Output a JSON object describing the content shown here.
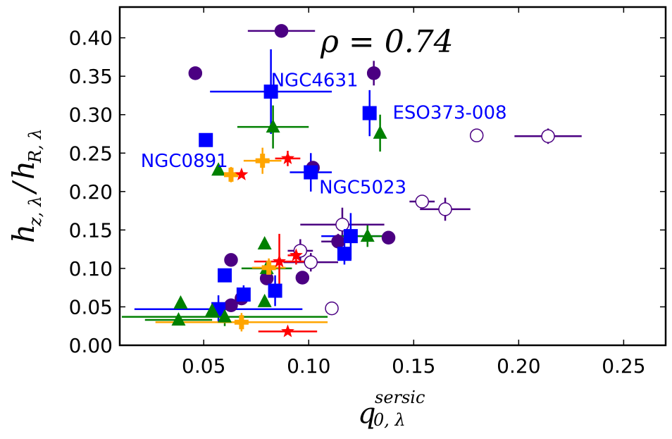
{
  "chart_data": {
    "type": "scatter",
    "title": "",
    "xlabel": "q",
    "xlabel_subscript": "0, λ",
    "xlabel_superscript": "sersic",
    "ylabel": "h_{z,λ}/h_{R,λ}",
    "ylabel_num_main": "h",
    "ylabel_num_sub": "z, λ",
    "ylabel_den_main": "h",
    "ylabel_den_sub": "R, λ",
    "xlim": [
      0.01,
      0.27
    ],
    "ylim": [
      0.0,
      0.44
    ],
    "xticks": [
      0.05,
      0.1,
      0.15,
      0.2,
      0.25
    ],
    "xtick_labels": [
      "0.05",
      "0.10",
      "0.15",
      "0.20",
      "0.25"
    ],
    "yticks": [
      0.0,
      0.05,
      0.1,
      0.15,
      0.2,
      0.25,
      0.3,
      0.35,
      0.4
    ],
    "ytick_labels": [
      "0.00",
      "0.05",
      "0.10",
      "0.15",
      "0.20",
      "0.25",
      "0.30",
      "0.35",
      "0.40"
    ],
    "correlation_text": "ρ = 0.74",
    "colors": {
      "purple": "#4b0082",
      "blue": "#0000ff",
      "green": "#008000",
      "orange": "#ffa500",
      "red": "#ff0000"
    },
    "annotations": [
      {
        "text": "NGC4631",
        "x": 0.082,
        "y": 0.345
      },
      {
        "text": "ESO373-008",
        "x": 0.14,
        "y": 0.303
      },
      {
        "text": "NGC0891",
        "x": 0.02,
        "y": 0.24
      },
      {
        "text": "NGC5023",
        "x": 0.105,
        "y": 0.206
      }
    ],
    "series": [
      {
        "name": "purple-filled",
        "marker": "circle",
        "color": "#4b0082",
        "filled": true,
        "points": [
          {
            "x": 0.087,
            "y": 0.409,
            "xerr": 0.016,
            "yerr": 0
          },
          {
            "x": 0.046,
            "y": 0.354,
            "xerr": 0,
            "yerr": 0
          },
          {
            "x": 0.131,
            "y": 0.354,
            "xerr": 0,
            "yerr": 0.016
          },
          {
            "x": 0.102,
            "y": 0.231,
            "xerr": 0,
            "yerr": 0
          },
          {
            "x": 0.063,
            "y": 0.111,
            "xerr": 0,
            "yerr": 0
          },
          {
            "x": 0.08,
            "y": 0.087,
            "xerr": 0,
            "yerr": 0
          },
          {
            "x": 0.097,
            "y": 0.088,
            "xerr": 0,
            "yerr": 0
          },
          {
            "x": 0.114,
            "y": 0.135,
            "xerr": 0.008,
            "yerr": 0.01
          },
          {
            "x": 0.138,
            "y": 0.14,
            "xerr": 0,
            "yerr": 0
          },
          {
            "x": 0.068,
            "y": 0.061,
            "xerr": 0,
            "yerr": 0
          },
          {
            "x": 0.063,
            "y": 0.052,
            "xerr": 0,
            "yerr": 0
          }
        ]
      },
      {
        "name": "purple-open",
        "marker": "circle",
        "color": "#4b0082",
        "filled": false,
        "points": [
          {
            "x": 0.18,
            "y": 0.273,
            "xerr": 0,
            "yerr": 0
          },
          {
            "x": 0.214,
            "y": 0.272,
            "xerr": 0.016,
            "yerr": 0.01
          },
          {
            "x": 0.154,
            "y": 0.187,
            "xerr": 0.006,
            "yerr": 0
          },
          {
            "x": 0.165,
            "y": 0.177,
            "xerr": 0.012,
            "yerr": 0.015
          },
          {
            "x": 0.116,
            "y": 0.157,
            "xerr": 0.02,
            "yerr": 0.022
          },
          {
            "x": 0.096,
            "y": 0.123,
            "xerr": 0.006,
            "yerr": 0.015
          },
          {
            "x": 0.101,
            "y": 0.108,
            "xerr": 0.013,
            "yerr": 0.012
          },
          {
            "x": 0.111,
            "y": 0.048,
            "xerr": 0,
            "yerr": 0
          }
        ]
      },
      {
        "name": "blue",
        "marker": "square",
        "color": "#0000ff",
        "filled": true,
        "points": [
          {
            "x": 0.082,
            "y": 0.33,
            "xerr": 0.029,
            "yerr": 0.055
          },
          {
            "x": 0.129,
            "y": 0.302,
            "xerr": 0,
            "yerr": 0.03
          },
          {
            "x": 0.051,
            "y": 0.267,
            "xerr": 0,
            "yerr": 0
          },
          {
            "x": 0.101,
            "y": 0.225,
            "xerr": 0.01,
            "yerr": 0.025
          },
          {
            "x": 0.12,
            "y": 0.142,
            "xerr": 0.014,
            "yerr": 0.03
          },
          {
            "x": 0.117,
            "y": 0.119,
            "xerr": 0,
            "yerr": 0.014
          },
          {
            "x": 0.06,
            "y": 0.091,
            "xerr": 0,
            "yerr": 0
          },
          {
            "x": 0.084,
            "y": 0.071,
            "xerr": 0,
            "yerr": 0.02
          },
          {
            "x": 0.069,
            "y": 0.066,
            "xerr": 0,
            "yerr": 0.012
          },
          {
            "x": 0.057,
            "y": 0.047,
            "xerr": 0.04,
            "yerr": 0.018
          }
        ]
      },
      {
        "name": "green",
        "marker": "triangle",
        "color": "#008000",
        "filled": true,
        "points": [
          {
            "x": 0.083,
            "y": 0.284,
            "xerr": 0.017,
            "yerr": 0.028
          },
          {
            "x": 0.134,
            "y": 0.276,
            "xerr": 0,
            "yerr": 0.024
          },
          {
            "x": 0.057,
            "y": 0.228,
            "xerr": 0,
            "yerr": 0
          },
          {
            "x": 0.079,
            "y": 0.132,
            "xerr": 0,
            "yerr": 0
          },
          {
            "x": 0.128,
            "y": 0.142,
            "xerr": 0.013,
            "yerr": 0.014
          },
          {
            "x": 0.08,
            "y": 0.1,
            "xerr": 0.012,
            "yerr": 0.01
          },
          {
            "x": 0.039,
            "y": 0.055,
            "xerr": 0,
            "yerr": 0
          },
          {
            "x": 0.079,
            "y": 0.057,
            "xerr": 0,
            "yerr": 0
          },
          {
            "x": 0.054,
            "y": 0.045,
            "xerr": 0,
            "yerr": 0
          },
          {
            "x": 0.06,
            "y": 0.037,
            "xerr": 0.049,
            "yerr": 0.012
          },
          {
            "x": 0.038,
            "y": 0.033,
            "xerr": 0.016,
            "yerr": 0
          }
        ]
      },
      {
        "name": "orange",
        "marker": "plus",
        "color": "#ffa500",
        "filled": true,
        "points": [
          {
            "x": 0.078,
            "y": 0.24,
            "xerr": 0.009,
            "yerr": 0.017
          },
          {
            "x": 0.063,
            "y": 0.222,
            "xerr": 0,
            "yerr": 0.01
          },
          {
            "x": 0.081,
            "y": 0.101,
            "xerr": 0.008,
            "yerr": 0.012
          },
          {
            "x": 0.068,
            "y": 0.03,
            "xerr": 0.041,
            "yerr": 0.012
          }
        ]
      },
      {
        "name": "red",
        "marker": "star",
        "color": "#ff0000",
        "filled": true,
        "points": [
          {
            "x": 0.09,
            "y": 0.243,
            "xerr": 0.006,
            "yerr": 0.01
          },
          {
            "x": 0.068,
            "y": 0.222,
            "xerr": 0,
            "yerr": 0
          },
          {
            "x": 0.094,
            "y": 0.117,
            "xerr": 0.004,
            "yerr": 0.012
          },
          {
            "x": 0.086,
            "y": 0.109,
            "xerr": 0.012,
            "yerr": 0.036
          },
          {
            "x": 0.09,
            "y": 0.018,
            "xerr": 0.014,
            "yerr": 0
          }
        ]
      }
    ]
  }
}
